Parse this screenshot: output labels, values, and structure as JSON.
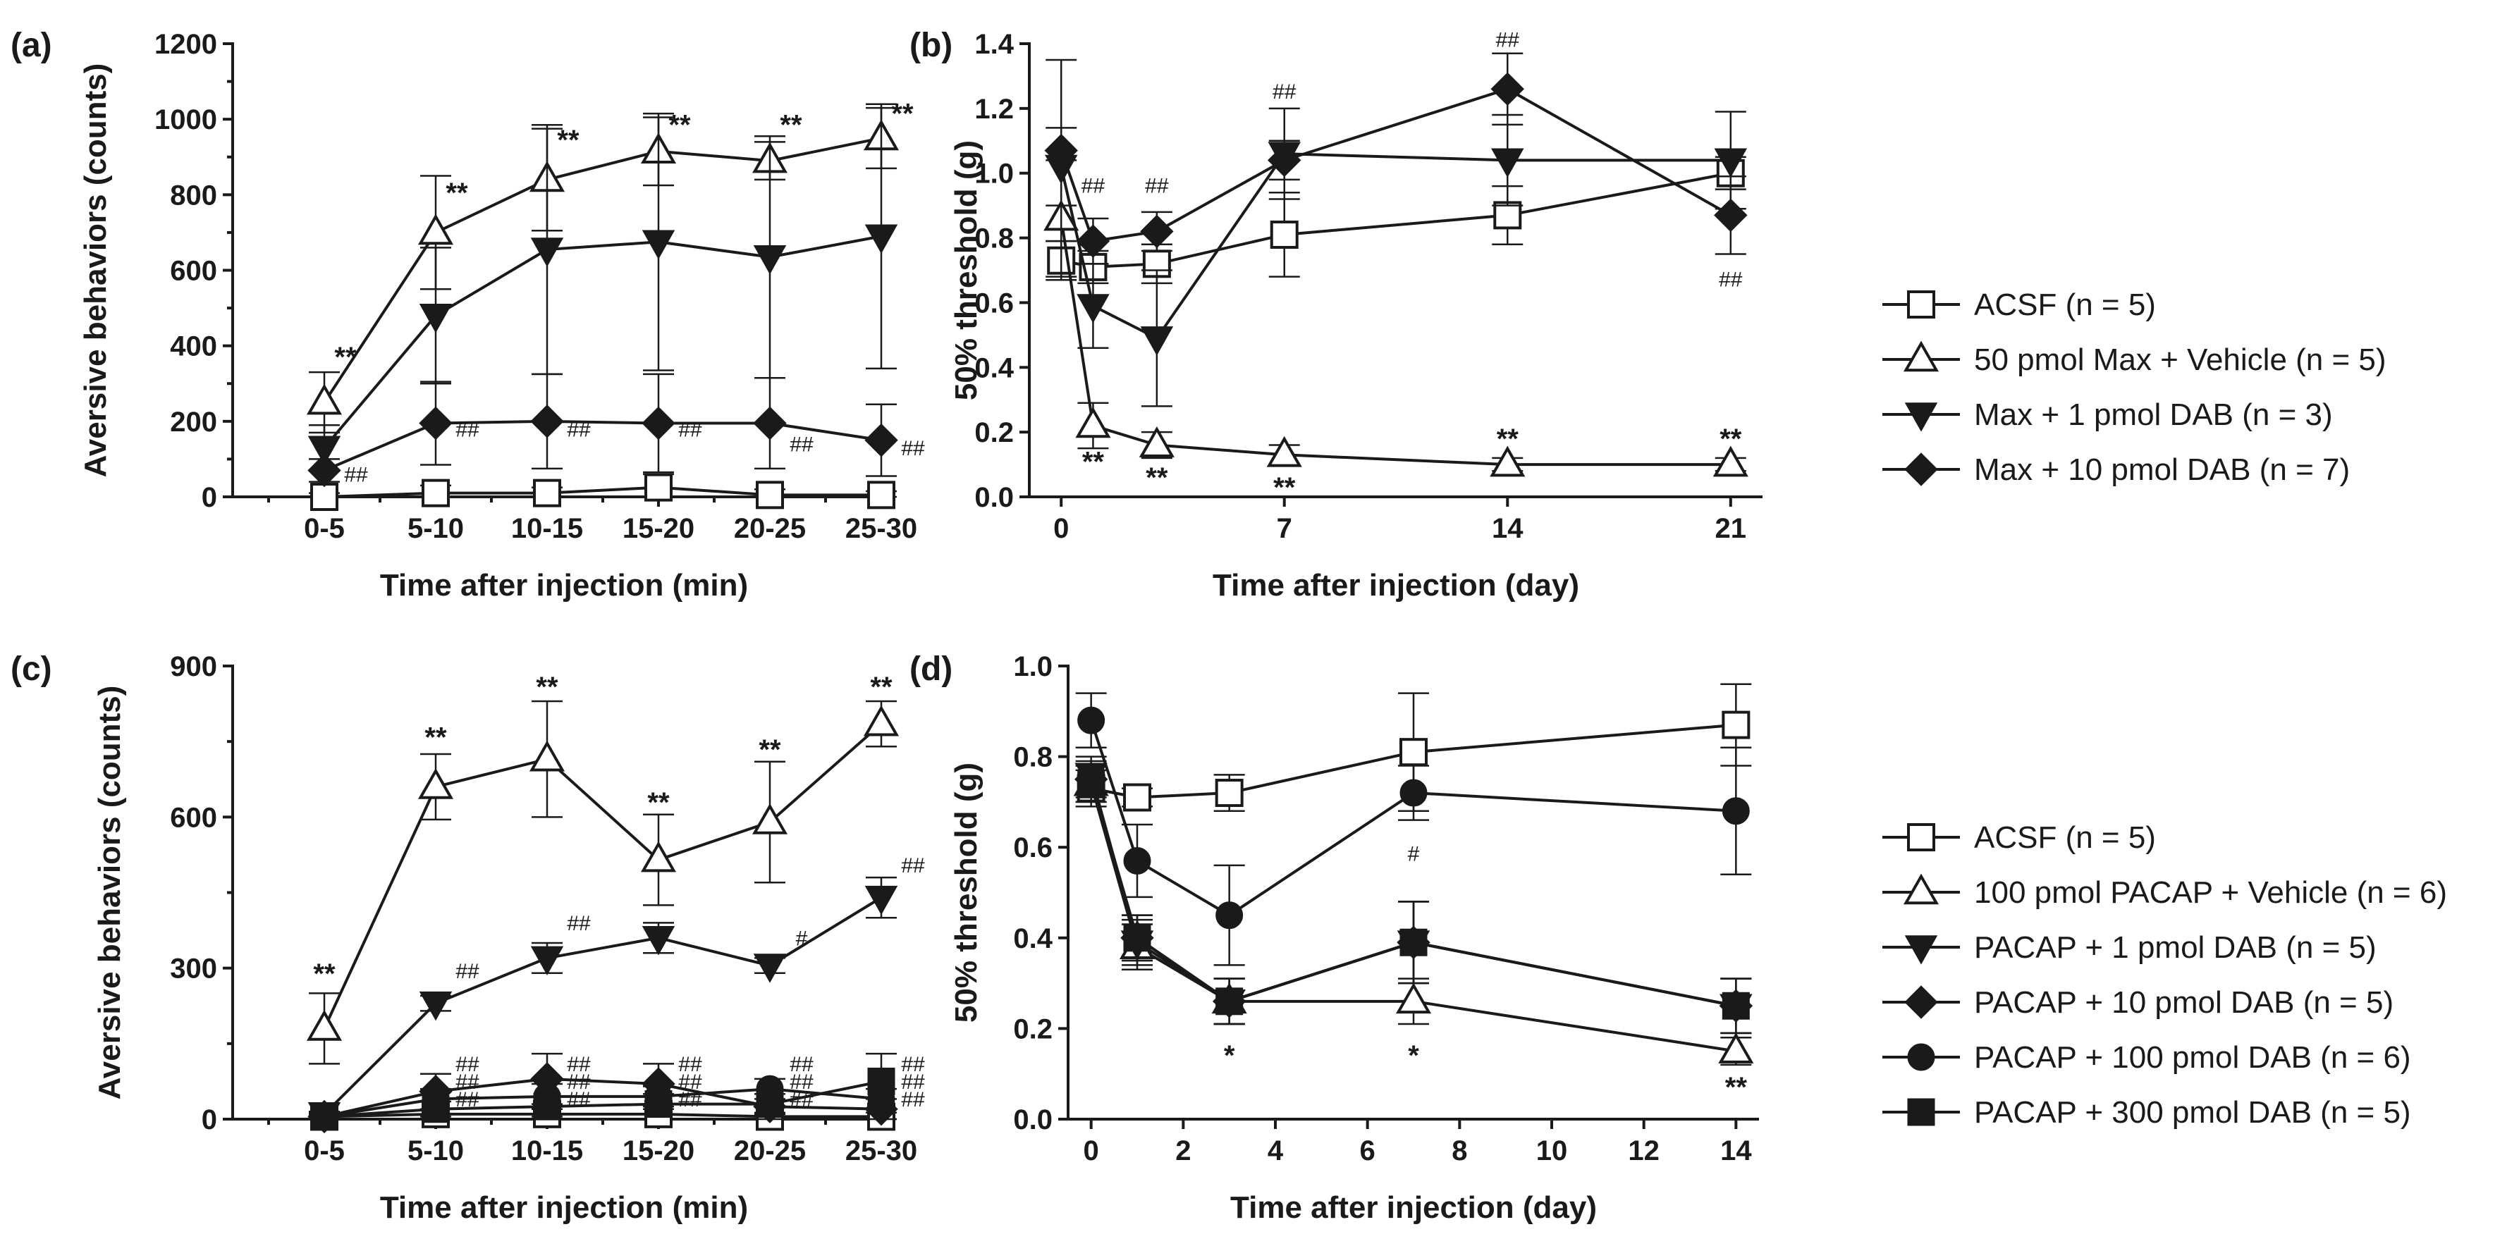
{
  "chart_data": [
    {
      "panel_label": "(a)",
      "type": "line",
      "xlabel": "Time after injection (min)",
      "ylabel": "Aversive behaviors (counts)",
      "x_type": "category",
      "categories": [
        "0-5",
        "5-10",
        "10-15",
        "15-20",
        "20-25",
        "25-30"
      ],
      "ylim": [
        0,
        1200
      ],
      "yticks": [
        0,
        200,
        400,
        600,
        800,
        1000,
        1200
      ],
      "series": [
        {
          "name": "ACSF (n = 5)",
          "marker": "square-open",
          "values": [
            0,
            10,
            10,
            25,
            5,
            5
          ],
          "errors": [
            10,
            20,
            15,
            35,
            15,
            10
          ]
        },
        {
          "name": "50 pmol Max + Vehicle (n = 5)",
          "marker": "triangle-up-open",
          "values": [
            250,
            700,
            840,
            915,
            890,
            950
          ],
          "errors": [
            80,
            150,
            135,
            90,
            50,
            80
          ]
        },
        {
          "name": "Max + 1 pmol DAB (n = 3)",
          "marker": "triangle-down-filled",
          "values": [
            130,
            480,
            655,
            675,
            635,
            690
          ],
          "errors": [
            60,
            180,
            330,
            340,
            320,
            350
          ]
        },
        {
          "name": "Max + 10 pmol DAB (n = 7)",
          "marker": "diamond-filled",
          "values": [
            70,
            195,
            200,
            195,
            195,
            150
          ],
          "errors": [
            30,
            110,
            125,
            130,
            120,
            95
          ]
        }
      ],
      "annotations": [
        {
          "text": "**",
          "x": 0,
          "y": 345
        },
        {
          "text": "**",
          "x": 1,
          "y": 780
        },
        {
          "text": "**",
          "x": 2,
          "y": 920
        },
        {
          "text": "**",
          "x": 3,
          "y": 960
        },
        {
          "text": "**",
          "x": 4,
          "y": 960
        },
        {
          "text": "**",
          "x": 5,
          "y": 990
        },
        {
          "text": "##",
          "x": 0,
          "y": 40
        },
        {
          "text": "##",
          "x": 1,
          "y": 160
        },
        {
          "text": "##",
          "x": 2,
          "y": 160
        },
        {
          "text": "##",
          "x": 3,
          "y": 160
        },
        {
          "text": "##",
          "x": 4,
          "y": 120
        },
        {
          "text": "##",
          "x": 5,
          "y": 110
        }
      ]
    },
    {
      "panel_label": "(b)",
      "type": "line",
      "xlabel": "Time after injection (day)",
      "ylabel": "50% threshold (g)",
      "x_type": "numeric",
      "xlim": [
        -1,
        22
      ],
      "xticks": [
        0,
        7,
        14,
        21
      ],
      "ylim": [
        0,
        1.4
      ],
      "yticks": [
        0.0,
        0.2,
        0.4,
        0.6,
        0.8,
        1.0,
        1.2,
        1.4
      ],
      "series": [
        {
          "name": "ACSF",
          "marker": "square-open",
          "x": [
            0,
            1,
            3,
            7,
            14,
            21
          ],
          "values": [
            0.73,
            0.71,
            0.72,
            0.81,
            0.87,
            1.0
          ],
          "errors": [
            0.06,
            0.05,
            0.06,
            0.13,
            0.09,
            0.05
          ]
        },
        {
          "name": "50 pmol Max + Vehicle",
          "marker": "triangle-up-open",
          "x": [
            0,
            1,
            3,
            7,
            14,
            21
          ],
          "values": [
            0.86,
            0.22,
            0.16,
            0.13,
            0.1,
            0.1
          ],
          "errors": [
            0.18,
            0.07,
            0.04,
            0.03,
            0.02,
            0.02
          ]
        },
        {
          "name": "Max + 1 pmol DAB",
          "marker": "triangle-down-filled",
          "x": [
            0,
            1,
            3,
            7,
            14,
            21
          ],
          "values": [
            1.02,
            0.59,
            0.49,
            1.06,
            1.04,
            1.04
          ],
          "errors": [
            0.12,
            0.13,
            0.21,
            0.14,
            0.14,
            0.15
          ]
        },
        {
          "name": "Max + 10 pmol DAB",
          "marker": "diamond-filled",
          "x": [
            0,
            1,
            3,
            7,
            14,
            21
          ],
          "values": [
            1.07,
            0.79,
            0.82,
            1.04,
            1.26,
            0.87
          ],
          "errors": [
            0.28,
            0.07,
            0.06,
            0.06,
            0.11,
            0.12
          ]
        }
      ],
      "annotations": [
        {
          "text": "##",
          "x": 1,
          "y": 0.94
        },
        {
          "text": "##",
          "x": 3,
          "y": 0.94
        },
        {
          "text": "##",
          "x": 7,
          "y": 1.23
        },
        {
          "text": "##",
          "x": 14,
          "y": 1.39
        },
        {
          "text": "##",
          "x": 21,
          "y": 0.65
        },
        {
          "text": "**",
          "x": 1,
          "y": 0.08
        },
        {
          "text": "**",
          "x": 3,
          "y": 0.03
        },
        {
          "text": "**",
          "x": 7,
          "y": 0.0
        },
        {
          "text": "**",
          "x": 14,
          "y": 0.15
        },
        {
          "text": "**",
          "x": 21,
          "y": 0.15
        }
      ]
    },
    {
      "panel_label": "(c)",
      "type": "line",
      "xlabel": "Time after injection (min)",
      "ylabel": "Aversive behaviors (counts)",
      "x_type": "category",
      "categories": [
        "0-5",
        "5-10",
        "10-15",
        "15-20",
        "20-25",
        "25-30"
      ],
      "ylim": [
        0,
        900
      ],
      "yticks": [
        0,
        300,
        600,
        900
      ],
      "series": [
        {
          "name": "ACSF (n = 5)",
          "marker": "square-open",
          "values": [
            5,
            10,
            10,
            10,
            5,
            5
          ],
          "errors": [
            8,
            10,
            10,
            10,
            8,
            8
          ]
        },
        {
          "name": "100 pmol PACAP + Vehicle (n = 6)",
          "marker": "triangle-up-open",
          "values": [
            180,
            660,
            715,
            515,
            590,
            785
          ],
          "errors": [
            70,
            65,
            115,
            90,
            120,
            45
          ]
        },
        {
          "name": "PACAP + 1 pmol DAB (n = 5)",
          "marker": "triangle-down-filled",
          "values": [
            10,
            230,
            320,
            360,
            305,
            440
          ],
          "errors": [
            5,
            15,
            30,
            30,
            15,
            40
          ]
        },
        {
          "name": "PACAP + 10 pmol DAB (n = 5)",
          "marker": "diamond-filled",
          "values": [
            5,
            55,
            80,
            70,
            25,
            20
          ],
          "errors": [
            5,
            35,
            50,
            40,
            25,
            20
          ]
        },
        {
          "name": "PACAP + 100 pmol DAB (n = 6)",
          "marker": "circle-filled",
          "values": [
            5,
            40,
            45,
            45,
            60,
            40
          ],
          "errors": [
            5,
            20,
            25,
            20,
            20,
            20
          ]
        },
        {
          "name": "PACAP + 300 pmol DAB (n = 5)",
          "marker": "square-filled",
          "values": [
            5,
            20,
            25,
            30,
            30,
            75
          ],
          "errors": [
            5,
            15,
            20,
            20,
            20,
            55
          ]
        }
      ],
      "annotations": [
        {
          "text": "**",
          "x": 0,
          "y": 270
        },
        {
          "text": "**",
          "x": 1,
          "y": 740
        },
        {
          "text": "**",
          "x": 2,
          "y": 840
        },
        {
          "text": "**",
          "x": 3,
          "y": 610
        },
        {
          "text": "**",
          "x": 4,
          "y": 715
        },
        {
          "text": "**",
          "x": 5,
          "y": 840
        },
        {
          "text": "##",
          "x": 1,
          "y": 280
        },
        {
          "text": "##",
          "x": 2,
          "y": 375
        },
        {
          "text": "#",
          "x": 4,
          "y": 345
        },
        {
          "text": "##",
          "x": 5,
          "y": 490
        },
        {
          "text": "##",
          "x": 1,
          "y": 95
        },
        {
          "text": "##",
          "x": 1,
          "y": 60
        },
        {
          "text": "##",
          "x": 1,
          "y": 25
        },
        {
          "text": "##",
          "x": 2,
          "y": 95
        },
        {
          "text": "##",
          "x": 2,
          "y": 60
        },
        {
          "text": "##",
          "x": 2,
          "y": 25
        },
        {
          "text": "##",
          "x": 3,
          "y": 95
        },
        {
          "text": "##",
          "x": 3,
          "y": 60
        },
        {
          "text": "##",
          "x": 3,
          "y": 25
        },
        {
          "text": "##",
          "x": 4,
          "y": 95
        },
        {
          "text": "##",
          "x": 4,
          "y": 60
        },
        {
          "text": "##",
          "x": 4,
          "y": 25
        },
        {
          "text": "##",
          "x": 5,
          "y": 95
        },
        {
          "text": "##",
          "x": 5,
          "y": 60
        },
        {
          "text": "##",
          "x": 5,
          "y": 25
        }
      ]
    },
    {
      "panel_label": "(d)",
      "type": "line",
      "xlabel": "Time after injection (day)",
      "ylabel": "50% threshold (g)",
      "x_type": "numeric",
      "xlim": [
        -0.5,
        14.5
      ],
      "xticks": [
        0,
        2,
        4,
        6,
        8,
        10,
        12,
        14
      ],
      "ylim": [
        0,
        1.0
      ],
      "yticks": [
        0.0,
        0.2,
        0.4,
        0.6,
        0.8,
        1.0
      ],
      "series": [
        {
          "name": "ACSF",
          "marker": "square-open",
          "x": [
            0,
            1,
            3,
            7,
            14
          ],
          "values": [
            0.73,
            0.71,
            0.72,
            0.81,
            0.87
          ],
          "errors": [
            0.04,
            0.02,
            0.04,
            0.13,
            0.09
          ]
        },
        {
          "name": "100 pmol PACAP + Vehicle",
          "marker": "triangle-up-open",
          "x": [
            0,
            1,
            3,
            7,
            14
          ],
          "values": [
            0.74,
            0.38,
            0.26,
            0.26,
            0.15
          ],
          "errors": [
            0.04,
            0.05,
            0.05,
            0.05,
            0.03
          ]
        },
        {
          "name": "PACAP + 1 pmol DAB",
          "marker": "triangle-down-filled",
          "x": [
            0,
            1,
            3,
            7,
            14
          ],
          "values": [
            0.76,
            0.39,
            0.26,
            0.39,
            0.25
          ],
          "errors": [
            0.04,
            0.05,
            0.05,
            0.09,
            0.06
          ]
        },
        {
          "name": "PACAP + 10 pmol DAB",
          "marker": "diamond-filled",
          "x": [
            0,
            1,
            3,
            7,
            14
          ],
          "values": [
            0.75,
            0.4,
            0.26,
            0.39,
            0.25
          ],
          "errors": [
            0.04,
            0.05,
            0.05,
            0.09,
            0.06
          ]
        },
        {
          "name": "PACAP + 100 pmol DAB",
          "marker": "circle-filled",
          "x": [
            0,
            1,
            3,
            7,
            14
          ],
          "values": [
            0.88,
            0.57,
            0.45,
            0.72,
            0.68
          ],
          "errors": [
            0.06,
            0.08,
            0.11,
            0.06,
            0.14
          ]
        },
        {
          "name": "PACAP + 300 pmol DAB",
          "marker": "square-filled",
          "x": [
            0,
            1,
            3,
            7,
            14
          ],
          "values": [
            0.74,
            0.4,
            0.26,
            0.39,
            0.25
          ],
          "errors": [
            0.04,
            0.05,
            0.05,
            0.09,
            0.06
          ]
        }
      ],
      "annotations": [
        {
          "text": "*",
          "x": 3,
          "y": 0.12
        },
        {
          "text": "#",
          "x": 7,
          "y": 0.57
        },
        {
          "text": "*",
          "x": 7,
          "y": 0.12
        },
        {
          "text": "**",
          "x": 14,
          "y": 0.05
        }
      ]
    }
  ],
  "legends": [
    {
      "panel": "(a)(b)",
      "entries": [
        {
          "label": "ACSF (n = 5)",
          "marker": "square-open"
        },
        {
          "label": "50 pmol Max + Vehicle (n = 5)",
          "marker": "triangle-up-open"
        },
        {
          "label": "Max + 1 pmol DAB (n = 3)",
          "marker": "triangle-down-filled"
        },
        {
          "label": "Max + 10 pmol DAB (n = 7)",
          "marker": "diamond-filled"
        }
      ]
    },
    {
      "panel": "(c)(d)",
      "entries": [
        {
          "label": "ACSF (n = 5)",
          "marker": "square-open"
        },
        {
          "label": "100 pmol PACAP + Vehicle (n = 6)",
          "marker": "triangle-up-open"
        },
        {
          "label": "PACAP + 1 pmol DAB (n = 5)",
          "marker": "triangle-down-filled"
        },
        {
          "label": "PACAP + 10 pmol DAB (n = 5)",
          "marker": "diamond-filled"
        },
        {
          "label": "PACAP + 100 pmol DAB (n = 6)",
          "marker": "circle-filled"
        },
        {
          "label": "PACAP + 300 pmol DAB (n = 5)",
          "marker": "square-filled"
        }
      ]
    }
  ]
}
